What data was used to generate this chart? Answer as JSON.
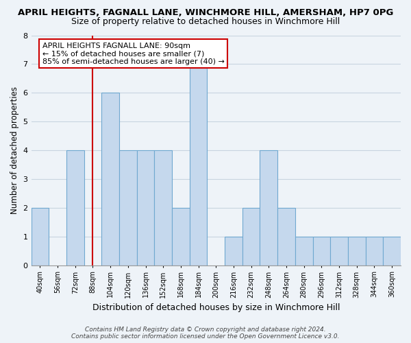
{
  "title": "APRIL HEIGHTS, FAGNALL LANE, WINCHMORE HILL, AMERSHAM, HP7 0PG",
  "subtitle": "Size of property relative to detached houses in Winchmore Hill",
  "xlabel": "Distribution of detached houses by size in Winchmore Hill",
  "ylabel": "Number of detached properties",
  "bin_labels": [
    "40sqm",
    "56sqm",
    "72sqm",
    "88sqm",
    "104sqm",
    "120sqm",
    "136sqm",
    "152sqm",
    "168sqm",
    "184sqm",
    "200sqm",
    "216sqm",
    "232sqm",
    "248sqm",
    "264sqm",
    "280sqm",
    "296sqm",
    "312sqm",
    "328sqm",
    "344sqm",
    "360sqm"
  ],
  "bin_edges": [
    40,
    56,
    72,
    88,
    104,
    120,
    136,
    152,
    168,
    184,
    200,
    216,
    232,
    248,
    264,
    280,
    296,
    312,
    328,
    344,
    360
  ],
  "counts": [
    2,
    0,
    4,
    0,
    6,
    4,
    4,
    4,
    2,
    7,
    0,
    1,
    2,
    4,
    2,
    1,
    1,
    1,
    1,
    1,
    1
  ],
  "bar_color": "#c5d8ed",
  "bar_edgecolor": "#6fa8d0",
  "vline_x": 88,
  "vline_color": "#cc0000",
  "ylim": [
    0,
    8
  ],
  "yticks": [
    0,
    1,
    2,
    3,
    4,
    5,
    6,
    7,
    8
  ],
  "annotation_title": "APRIL HEIGHTS FAGNALL LANE: 90sqm",
  "annotation_line1": "← 15% of detached houses are smaller (7)",
  "annotation_line2": "85% of semi-detached houses are larger (40) →",
  "annotation_box_facecolor": "#ffffff",
  "annotation_box_edgecolor": "#cc0000",
  "footer1": "Contains HM Land Registry data © Crown copyright and database right 2024.",
  "footer2": "Contains public sector information licensed under the Open Government Licence v3.0.",
  "bg_color": "#eef3f8",
  "plot_bg_color": "#eef3f8",
  "grid_color": "#c8d4e0",
  "title_fontsize": 9.5,
  "subtitle_fontsize": 9,
  "tick_label_fontsize": 7,
  "xlabel_fontsize": 9,
  "ylabel_fontsize": 8.5,
  "annotation_fontsize": 8,
  "footer_fontsize": 6.5
}
